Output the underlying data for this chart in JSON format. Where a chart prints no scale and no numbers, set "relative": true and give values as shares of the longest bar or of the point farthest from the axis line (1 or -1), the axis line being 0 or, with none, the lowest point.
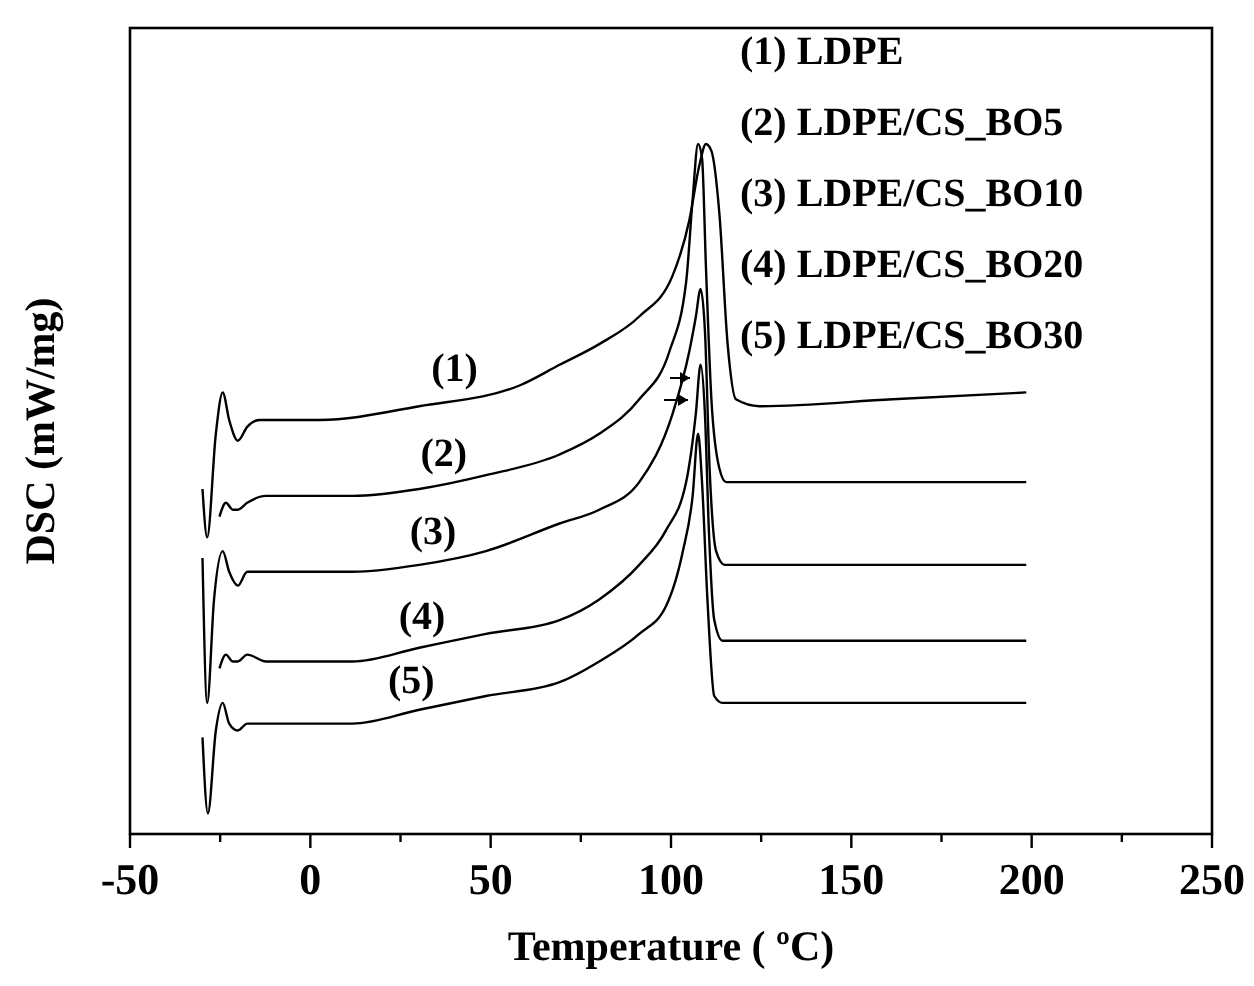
{
  "chart_data": {
    "type": "line",
    "xlabel": "Temperature ( ºC)",
    "ylabel": "DSC (mW/mg)",
    "relative": true,
    "marker": "none",
    "line_style": "solid",
    "grid": false,
    "xlim": [
      -50,
      250
    ],
    "xticks": [
      -50,
      {
        "value": -25,
        "label": null
      },
      0,
      {
        "value": 25,
        "label": null
      },
      50,
      {
        "value": 75,
        "label": null
      },
      100,
      {
        "value": 125,
        "label": null
      },
      150,
      {
        "value": 175,
        "label": null
      },
      200,
      {
        "value": 225,
        "label": null
      },
      250
    ],
    "annotations": [
      "(1) LDPE",
      "(2) LDPE/CS_BO5",
      "(3) LDPE/CS_BO10",
      "(4) LDPE/CS_BO20",
      "(5) LDPE/CS_BO30"
    ],
    "series": [
      {
        "name": "(1)",
        "color": "#000000",
        "x": [
          -29.9,
          -28.6,
          -26.2,
          -24.3,
          -22.5,
          -20.1,
          -17.5,
          -14.1,
          2.5,
          30.2,
          58.0,
          69.1,
          80.1,
          91.2,
          100.5,
          105.1,
          107.9,
          109.7,
          111.2,
          113.4,
          115.7,
          118.0,
          124.5,
          161.5,
          198.5
        ],
        "values": [
          0.5,
          0.43,
          0.58,
          0.64,
          0.6,
          0.57,
          0.59,
          0.6,
          0.6,
          0.62,
          0.65,
          0.68,
          0.71,
          0.75,
          0.81,
          0.89,
          0.97,
          1,
          0.99,
          0.9,
          0.71,
          0.63,
          0.62,
          0.63,
          0.64
        ]
      },
      {
        "name": "(2)",
        "color": "#000000",
        "x": [
          -25.2,
          -23.4,
          -21.5,
          -20.1,
          -17.5,
          -12.3,
          11.7,
          30.2,
          48.7,
          69.1,
          80.1,
          91.2,
          99.6,
          104.2,
          106.0,
          107.5,
          108.6,
          109.7,
          111.2,
          113.4,
          115.3,
          143.0,
          198.5
        ],
        "values": [
          0.46,
          0.48,
          0.47,
          0.47,
          0.48,
          0.49,
          0.49,
          0.5,
          0.52,
          0.55,
          0.58,
          0.63,
          0.7,
          0.8,
          0.92,
          1,
          0.98,
          0.82,
          0.63,
          0.53,
          0.51,
          0.51,
          0.51
        ]
      },
      {
        "name": "(3)",
        "color": "#000000",
        "x": [
          -29.9,
          -28.6,
          -26.7,
          -24.3,
          -22.5,
          -20.1,
          -17.5,
          -12.3,
          11.7,
          30.2,
          48.7,
          69.1,
          80.1,
          91.2,
          100.5,
          105.1,
          106.9,
          108.2,
          109.4,
          110.7,
          112.5,
          114.9,
          133.7,
          198.5
        ],
        "values": [
          0.4,
          0.19,
          0.34,
          0.41,
          0.38,
          0.36,
          0.38,
          0.38,
          0.38,
          0.39,
          0.41,
          0.45,
          0.47,
          0.51,
          0.61,
          0.7,
          0.75,
          0.79,
          0.73,
          0.53,
          0.41,
          0.39,
          0.39,
          0.39
        ]
      },
      {
        "name": "(4)",
        "color": "#000000",
        "x": [
          -25.2,
          -23.4,
          -21.5,
          -20.1,
          -17.5,
          -12.3,
          11.7,
          30.2,
          48.7,
          69.1,
          80.1,
          91.2,
          98.6,
          104.2,
          106.9,
          108.2,
          109.4,
          110.5,
          112.0,
          114.3,
          198.5
        ],
        "values": [
          0.24,
          0.26,
          0.25,
          0.25,
          0.26,
          0.25,
          0.25,
          0.27,
          0.29,
          0.31,
          0.34,
          0.39,
          0.44,
          0.51,
          0.61,
          0.68,
          0.61,
          0.44,
          0.31,
          0.28,
          0.28
        ]
      },
      {
        "name": "(5)",
        "color": "#000000",
        "x": [
          -29.9,
          -28.4,
          -26.2,
          -24.3,
          -22.5,
          -20.1,
          -17.5,
          -12.3,
          11.7,
          30.2,
          48.7,
          69.1,
          80.1,
          91.2,
          98.6,
          103.3,
          106.0,
          107.5,
          108.6,
          110.1,
          112.0,
          114.3,
          198.5
        ],
        "values": [
          0.14,
          0.03,
          0.15,
          0.19,
          0.16,
          0.15,
          0.16,
          0.16,
          0.16,
          0.18,
          0.2,
          0.22,
          0.25,
          0.29,
          0.33,
          0.41,
          0.49,
          0.58,
          0.51,
          0.34,
          0.2,
          0.19,
          0.19
        ]
      }
    ]
  }
}
